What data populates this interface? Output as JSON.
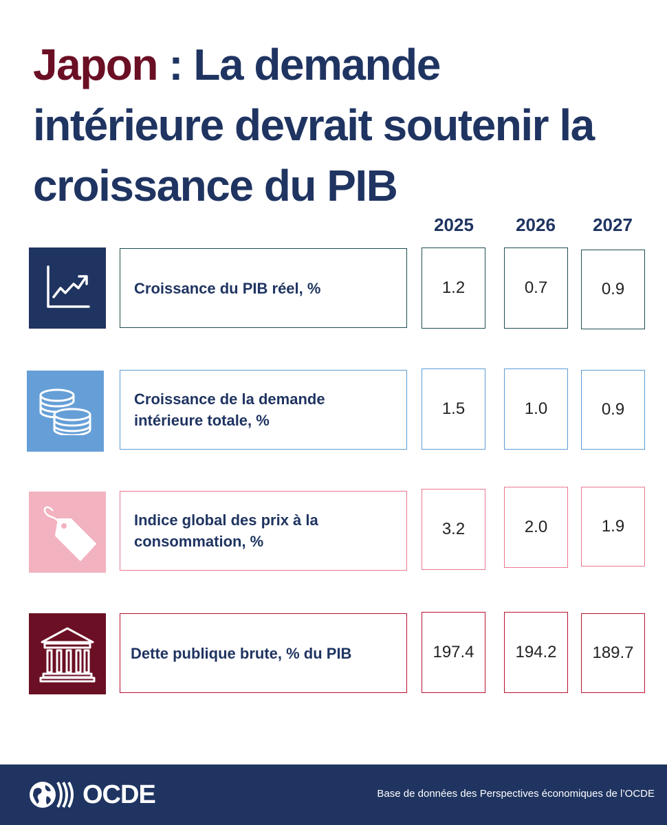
{
  "title": {
    "country": "Japon",
    "separator": " : ",
    "text": "La demande intérieure devrait soutenir la croissance du PIB"
  },
  "years": [
    "2025",
    "2026",
    "2027"
  ],
  "rows": [
    {
      "label": "Croissance du PIB réel, %",
      "values": [
        "1.2",
        "0.7",
        "0.9"
      ],
      "icon": "line-chart-up-icon",
      "icon_bg": "#1f3461",
      "border": "#1d4d4f"
    },
    {
      "label": "Croissance de la demande intérieure totale, %",
      "values": [
        "1.5",
        "1.0",
        "0.9"
      ],
      "icon": "coins-icon",
      "icon_bg": "#669fd7",
      "border": "#5b9bd5"
    },
    {
      "label": "Indice global des prix à la consommation, %",
      "values": [
        "3.2",
        "2.0",
        "1.9"
      ],
      "icon": "price-tag-icon",
      "icon_bg": "#f2b2c0",
      "border": "#e8778f"
    },
    {
      "label": "Dette publique brute, % du PIB",
      "values": [
        "197.4",
        "194.2",
        "189.7"
      ],
      "icon": "bank-building-icon",
      "icon_bg": "#6b0f24",
      "border": "#b8102e"
    }
  ],
  "footer": {
    "logo": "OCDE",
    "source": "Base de données des Perspectives économiques de l’OCDE",
    "background": "#1f3461"
  }
}
